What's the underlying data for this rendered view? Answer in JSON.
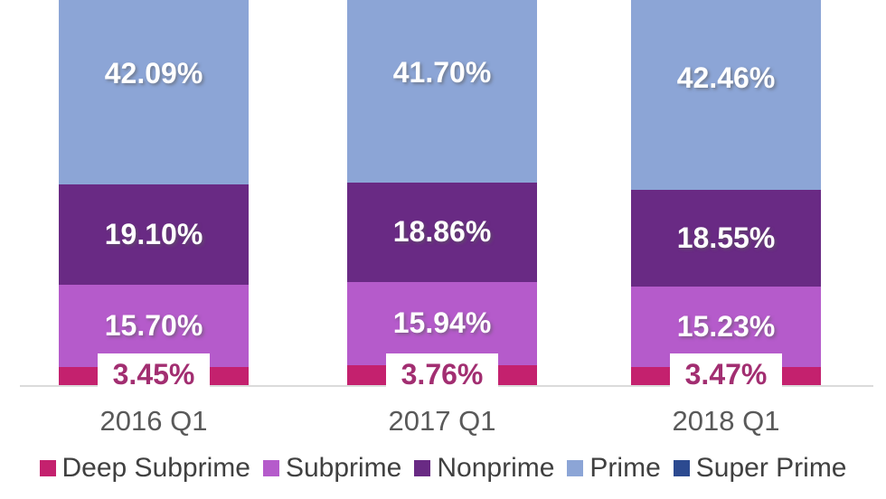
{
  "chart_data": {
    "type": "bar",
    "stacked": true,
    "title": "",
    "xlabel": "",
    "ylabel": "",
    "value_format": "percent",
    "legend_position": "bottom",
    "top_cropped": true,
    "categories": [
      "2016 Q1",
      "2017 Q1",
      "2018 Q1"
    ],
    "series": [
      {
        "name": "Deep Subprime",
        "color": "#c4216e",
        "values": [
          3.45,
          3.76,
          3.47
        ],
        "labels": [
          "3.45%",
          "3.76%",
          "3.47%"
        ],
        "label_style": "white-callout"
      },
      {
        "name": "Subprime",
        "color": "#b55bcb",
        "values": [
          15.7,
          15.94,
          15.23
        ],
        "labels": [
          "15.70%",
          "15.94%",
          "15.23%"
        ],
        "label_style": "inside-white"
      },
      {
        "name": "Nonprime",
        "color": "#692a84",
        "values": [
          19.1,
          18.86,
          18.55
        ],
        "labels": [
          "19.10%",
          "18.86%",
          "18.55%"
        ],
        "label_style": "inside-white"
      },
      {
        "name": "Prime",
        "color": "#8ca5d6",
        "values": [
          42.09,
          41.7,
          42.46
        ],
        "labels": [
          "42.09%",
          "41.70%",
          "42.46%"
        ],
        "label_style": "inside-white"
      },
      {
        "name": "Super Prime",
        "color": "#2c4a90",
        "values": [],
        "labels": []
      }
    ]
  },
  "style": {
    "axis_line_color": "#dbdbdb",
    "tick_label_color": "#595959",
    "legend_text_color": "#404040",
    "callout_text_color": "#a22e71",
    "segment_label_color": "#ffffff"
  }
}
